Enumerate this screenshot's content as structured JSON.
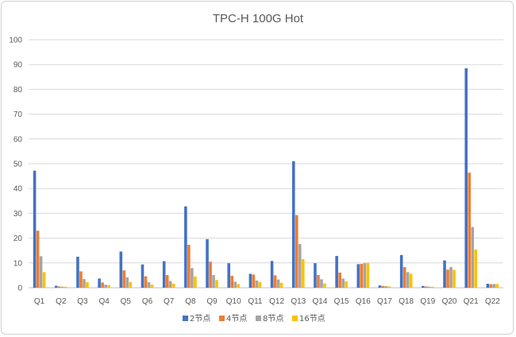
{
  "chart_data": {
    "type": "bar",
    "title": "TPC-H 100G Hot",
    "xlabel": "",
    "ylabel": "",
    "ylim": [
      0,
      100
    ],
    "yticks": [
      0,
      10,
      20,
      30,
      40,
      50,
      60,
      70,
      80,
      90,
      100
    ],
    "grid": true,
    "legend_position": "bottom",
    "categories": [
      "Q1",
      "Q2",
      "Q3",
      "Q4",
      "Q5",
      "Q6",
      "Q7",
      "Q8",
      "Q9",
      "Q10",
      "Q11",
      "Q12",
      "Q13",
      "Q14",
      "Q15",
      "Q16",
      "Q17",
      "Q18",
      "Q19",
      "Q20",
      "Q21",
      "Q22"
    ],
    "series": [
      {
        "name": "2节点",
        "color": "#4472c4",
        "values": [
          47.2,
          0.8,
          12.5,
          3.7,
          14.6,
          9.4,
          10.7,
          32.8,
          19.6,
          9.9,
          5.6,
          10.8,
          51.0,
          9.9,
          12.8,
          9.5,
          0.9,
          13.2,
          0.7,
          11.0,
          88.5,
          1.6
        ]
      },
      {
        "name": "4节点",
        "color": "#ed7d31",
        "values": [
          23.0,
          0.5,
          6.6,
          2.1,
          7.0,
          4.6,
          5.1,
          17.3,
          10.5,
          4.8,
          5.3,
          5.0,
          29.3,
          5.1,
          6.1,
          9.6,
          0.7,
          8.3,
          0.5,
          7.3,
          46.4,
          1.4
        ]
      },
      {
        "name": "8节点",
        "color": "#a5a5a5",
        "values": [
          12.7,
          0.4,
          3.5,
          1.2,
          4.2,
          2.2,
          2.7,
          7.9,
          5.1,
          2.4,
          2.9,
          3.3,
          17.6,
          3.4,
          3.7,
          9.9,
          0.6,
          6.3,
          0.4,
          8.3,
          24.5,
          1.5
        ]
      },
      {
        "name": "16节点",
        "color": "#ffc000",
        "values": [
          6.3,
          0.4,
          2.2,
          1.0,
          2.3,
          1.2,
          1.6,
          4.5,
          3.1,
          1.5,
          2.3,
          2.0,
          11.5,
          1.7,
          2.6,
          10.0,
          0.5,
          5.6,
          0.4,
          7.2,
          15.4,
          1.5
        ]
      }
    ]
  }
}
